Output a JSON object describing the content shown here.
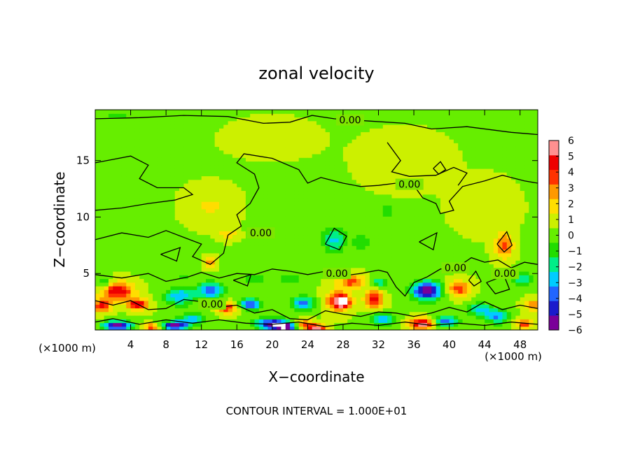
{
  "chart_data": {
    "type": "heatmap",
    "title": "zonal velocity",
    "xlabel": "X−coordinate",
    "ylabel": "Z−coordinate",
    "x_unit": "(×1000 m)",
    "x_unit_right": "(×1000 m)",
    "footer": "CONTOUR INTERVAL = 1.000E+01",
    "xlim": [
      0,
      50
    ],
    "ylim": [
      0,
      19.5
    ],
    "x_ticks": [
      4,
      8,
      12,
      16,
      20,
      24,
      28,
      32,
      36,
      40,
      44,
      48
    ],
    "x_tick_labels": [
      "4",
      "8",
      "12",
      "16",
      "20",
      "24",
      "28",
      "32",
      "36",
      "40",
      "44",
      "48"
    ],
    "y_ticks": [
      5,
      10,
      15
    ],
    "y_tick_labels": [
      "5",
      "10",
      "15"
    ],
    "colorbar": {
      "min": -6,
      "max": 6,
      "ticks": [
        6,
        5,
        4,
        3,
        2,
        1,
        0,
        -1,
        -2,
        -3,
        -4,
        -5,
        -6
      ],
      "tick_labels": [
        "6",
        "5",
        "4",
        "3",
        "2",
        "1",
        "0",
        "−1",
        "−2",
        "−3",
        "−4",
        "−5",
        "−6"
      ],
      "colors": [
        "#7a0099",
        "#1a1acc",
        "#2266ff",
        "#00ccff",
        "#00ee88",
        "#22dd00",
        "#66ee00",
        "#ccf000",
        "#ffdd00",
        "#ff9900",
        "#ff3300",
        "#ee0000",
        "#ff9090"
      ]
    },
    "contour_labels": [
      {
        "text": "0.00",
        "x": 28.8,
        "z": 18.6
      },
      {
        "text": "0.00",
        "x": 35.5,
        "z": 12.9
      },
      {
        "text": "0.00",
        "x": 18.7,
        "z": 8.6
      },
      {
        "text": "0.00",
        "x": 27.3,
        "z": 5.0
      },
      {
        "text": "0.00",
        "x": 40.7,
        "z": 5.5
      },
      {
        "text": "0.00",
        "x": 46.3,
        "z": 5.0
      },
      {
        "text": "0.00",
        "x": 13.2,
        "z": 2.3
      }
    ],
    "field": {
      "background": 0.4,
      "features": [
        {
          "x": 2.5,
          "z": 3.5,
          "sx": 1.8,
          "sz": 0.8,
          "v": 4.8
        },
        {
          "x": 0.8,
          "z": 2.2,
          "sx": 1.0,
          "sz": 0.6,
          "v": 4.2
        },
        {
          "x": 4.8,
          "z": 2.3,
          "sx": 1.2,
          "sz": 0.5,
          "v": 4.6
        },
        {
          "x": 2.5,
          "z": 0.4,
          "sx": 1.6,
          "sz": 0.4,
          "v": -6.5
        },
        {
          "x": 9.0,
          "z": 0.4,
          "sx": 1.5,
          "sz": 0.4,
          "v": -6.3
        },
        {
          "x": 6.5,
          "z": 0.3,
          "sx": 1.0,
          "sz": 0.3,
          "v": 4.0
        },
        {
          "x": 9.5,
          "z": 3.0,
          "sx": 1.6,
          "sz": 0.8,
          "v": -3.6
        },
        {
          "x": 13.0,
          "z": 3.5,
          "sx": 1.5,
          "sz": 0.7,
          "v": -4.5
        },
        {
          "x": 15.0,
          "z": 2.0,
          "sx": 1.2,
          "sz": 0.5,
          "v": 3.6
        },
        {
          "x": 11.0,
          "z": 1.0,
          "sx": 1.5,
          "sz": 0.5,
          "v": -3.0
        },
        {
          "x": 17.5,
          "z": 2.3,
          "sx": 1.3,
          "sz": 0.5,
          "v": -4.6
        },
        {
          "x": 20.0,
          "z": 0.6,
          "sx": 2.0,
          "sz": 0.5,
          "v": -5.4
        },
        {
          "x": 21.5,
          "z": 0.3,
          "sx": 1.5,
          "sz": 0.3,
          "v": -6.4
        },
        {
          "x": 23.5,
          "z": 0.5,
          "sx": 1.2,
          "sz": 0.4,
          "v": 4.0
        },
        {
          "x": 25.0,
          "z": 0.2,
          "sx": 1.0,
          "sz": 0.3,
          "v": 5.3
        },
        {
          "x": 23.5,
          "z": 2.4,
          "sx": 1.3,
          "sz": 0.6,
          "v": -3.8
        },
        {
          "x": 27.5,
          "z": 2.6,
          "sx": 1.4,
          "sz": 0.9,
          "v": 4.6
        },
        {
          "x": 28.0,
          "z": 2.5,
          "sx": 0.6,
          "sz": 0.4,
          "v": 5.6
        },
        {
          "x": 29.0,
          "z": 4.3,
          "sx": 1.6,
          "sz": 0.6,
          "v": 3.3
        },
        {
          "x": 31.5,
          "z": 2.8,
          "sx": 1.0,
          "sz": 0.8,
          "v": 4.4
        },
        {
          "x": 32.5,
          "z": 1.0,
          "sx": 1.5,
          "sz": 0.5,
          "v": -3.4
        },
        {
          "x": 32.0,
          "z": 4.2,
          "sx": 1.0,
          "sz": 0.5,
          "v": -2.5
        },
        {
          "x": 37.5,
          "z": 3.5,
          "sx": 1.7,
          "sz": 0.8,
          "v": -6.4
        },
        {
          "x": 37.0,
          "z": 0.6,
          "sx": 1.5,
          "sz": 0.5,
          "v": 5.6
        },
        {
          "x": 39.5,
          "z": 0.8,
          "sx": 1.4,
          "sz": 0.5,
          "v": -4.4
        },
        {
          "x": 41.0,
          "z": 3.7,
          "sx": 1.3,
          "sz": 0.7,
          "v": 3.6
        },
        {
          "x": 43.5,
          "z": 1.8,
          "sx": 1.3,
          "sz": 0.6,
          "v": -3.3
        },
        {
          "x": 45.5,
          "z": 1.2,
          "sx": 1.2,
          "sz": 0.6,
          "v": -3.7
        },
        {
          "x": 46.2,
          "z": 7.5,
          "sx": 1.0,
          "sz": 1.1,
          "v": 3.3
        },
        {
          "x": 48.5,
          "z": 0.6,
          "sx": 1.0,
          "sz": 0.4,
          "v": 3.6
        },
        {
          "x": 49.5,
          "z": 2.2,
          "sx": 1.0,
          "sz": 0.5,
          "v": 3.1
        },
        {
          "x": 48.2,
          "z": 4.5,
          "sx": 1.1,
          "sz": 0.6,
          "v": -2.8
        },
        {
          "x": 27.0,
          "z": 8.0,
          "sx": 1.3,
          "sz": 1.1,
          "v": -3.0
        },
        {
          "x": 30.0,
          "z": 7.8,
          "sx": 1.0,
          "sz": 0.8,
          "v": -1.6
        },
        {
          "x": 33.0,
          "z": 10.5,
          "sx": 0.8,
          "sz": 0.6,
          "v": -1.6
        },
        {
          "x": 13.0,
          "z": 6.0,
          "sx": 0.6,
          "sz": 0.5,
          "v": 3.0
        },
        {
          "x": 15.0,
          "z": 8.5,
          "sx": 1.0,
          "sz": 0.5,
          "v": 1.8
        },
        {
          "x": 18.0,
          "z": 4.5,
          "sx": 1.5,
          "sz": 0.5,
          "v": -1.4
        },
        {
          "x": 10.0,
          "z": 4.8,
          "sx": 1.2,
          "sz": 0.4,
          "v": -1.2
        },
        {
          "x": 22.0,
          "z": 4.5,
          "sx": 1.2,
          "sz": 0.5,
          "v": -1.6
        },
        {
          "x": 1.0,
          "z": 4.2,
          "sx": 1.0,
          "sz": 0.5,
          "v": -2.2
        },
        {
          "x": 2.5,
          "z": 19.0,
          "sx": 1.2,
          "sz": 0.4,
          "v": -1.3
        },
        {
          "x": 13.0,
          "z": 11.0,
          "sx": 2.5,
          "sz": 1.5,
          "v": 1.1
        },
        {
          "x": 35.0,
          "z": 15.0,
          "sx": 4.0,
          "sz": 2.0,
          "v": 0.9
        },
        {
          "x": 20.0,
          "z": 17.0,
          "sx": 6.0,
          "sz": 2.0,
          "v": 0.2
        },
        {
          "x": 44.0,
          "z": 11.0,
          "sx": 3.0,
          "sz": 2.0,
          "v": 0.8
        }
      ]
    },
    "zero_contours": [
      [
        [
          0,
          18.7
        ],
        [
          5,
          18.8
        ],
        [
          10,
          19.0
        ],
        [
          15,
          18.9
        ],
        [
          19,
          18.3
        ],
        [
          22,
          18.4
        ],
        [
          24.5,
          19.0
        ],
        [
          27,
          18.7
        ],
        [
          31,
          18.5
        ],
        [
          35,
          18.3
        ],
        [
          38,
          17.8
        ],
        [
          42,
          18.0
        ],
        [
          47,
          17.5
        ],
        [
          50,
          17.3
        ]
      ],
      [
        [
          0,
          14.8
        ],
        [
          4,
          15.4
        ],
        [
          6,
          14.6
        ],
        [
          5,
          13.4
        ],
        [
          7,
          12.6
        ],
        [
          10,
          12.6
        ],
        [
          11,
          12.0
        ],
        [
          9,
          11.5
        ],
        [
          6,
          11.2
        ],
        [
          3,
          10.8
        ],
        [
          0,
          10.6
        ]
      ],
      [
        [
          0,
          8.0
        ],
        [
          3,
          8.6
        ],
        [
          6,
          8.2
        ],
        [
          8,
          8.8
        ],
        [
          10,
          8.2
        ],
        [
          12,
          7.6
        ],
        [
          11,
          6.5
        ],
        [
          13,
          5.8
        ],
        [
          14.5,
          6.8
        ],
        [
          15,
          8.4
        ],
        [
          16.5,
          9.2
        ],
        [
          16,
          10.2
        ],
        [
          17.5,
          11.2
        ],
        [
          18.5,
          12.6
        ],
        [
          18,
          13.8
        ],
        [
          16,
          14.8
        ],
        [
          16.8,
          15.6
        ],
        [
          20,
          15.2
        ],
        [
          23,
          14.2
        ],
        [
          24,
          13.0
        ],
        [
          25.5,
          13.5
        ],
        [
          28,
          13.0
        ],
        [
          30,
          12.7
        ],
        [
          32,
          12.8
        ],
        [
          34,
          13.0
        ],
        [
          36,
          12.8
        ],
        [
          37,
          11.7
        ],
        [
          38.5,
          11.2
        ],
        [
          39,
          10.3
        ],
        [
          40.5,
          10.6
        ],
        [
          40,
          11.4
        ],
        [
          41.5,
          12.7
        ],
        [
          44,
          13.2
        ],
        [
          46,
          13.7
        ],
        [
          48.5,
          13.2
        ],
        [
          50,
          13.0
        ]
      ],
      [
        [
          33,
          16.6
        ],
        [
          34.5,
          15.0
        ],
        [
          33.5,
          14.0
        ],
        [
          35.5,
          13.6
        ],
        [
          38.5,
          13.7
        ],
        [
          40.5,
          14.4
        ],
        [
          42,
          13.9
        ],
        [
          41,
          12.8
        ]
      ],
      [
        [
          0,
          4.9
        ],
        [
          3,
          4.6
        ],
        [
          6,
          5.0
        ],
        [
          8,
          4.3
        ],
        [
          10.5,
          4.7
        ],
        [
          12,
          5.1
        ],
        [
          14,
          4.6
        ],
        [
          16,
          5.0
        ],
        [
          18,
          4.9
        ],
        [
          20,
          5.4
        ],
        [
          22,
          5.2
        ],
        [
          24,
          4.9
        ],
        [
          26,
          5.2
        ],
        [
          28,
          4.8
        ],
        [
          30,
          5.0
        ],
        [
          32,
          5.3
        ],
        [
          33,
          5.1
        ],
        [
          34,
          3.8
        ],
        [
          35,
          3.0
        ],
        [
          36,
          4.2
        ],
        [
          37.5,
          4.7
        ],
        [
          39,
          5.4
        ],
        [
          41,
          5.6
        ],
        [
          42.5,
          6.4
        ],
        [
          44,
          6.0
        ],
        [
          45.5,
          6.2
        ],
        [
          47,
          5.5
        ],
        [
          48.5,
          6.0
        ],
        [
          50,
          5.8
        ]
      ],
      [
        [
          0,
          2.6
        ],
        [
          2,
          2.2
        ],
        [
          4,
          2.6
        ],
        [
          6,
          1.8
        ],
        [
          8,
          1.9
        ],
        [
          10,
          2.7
        ],
        [
          12,
          2.5
        ],
        [
          14,
          2.0
        ],
        [
          16,
          2.2
        ],
        [
          18,
          1.5
        ],
        [
          20,
          1.8
        ],
        [
          22,
          1.0
        ],
        [
          24,
          0.9
        ],
        [
          26,
          1.7
        ],
        [
          28,
          1.4
        ],
        [
          30,
          1.2
        ],
        [
          32,
          1.6
        ],
        [
          34,
          1.5
        ],
        [
          36,
          1.2
        ],
        [
          38,
          1.5
        ],
        [
          40,
          2.0
        ],
        [
          42,
          1.6
        ],
        [
          44,
          2.5
        ],
        [
          46,
          1.8
        ],
        [
          48,
          2.2
        ],
        [
          50,
          1.9
        ]
      ],
      [
        [
          0,
          0.7
        ],
        [
          2,
          1.0
        ],
        [
          5,
          0.5
        ],
        [
          8,
          0.9
        ],
        [
          11,
          0.6
        ],
        [
          14,
          0.9
        ],
        [
          17,
          0.6
        ],
        [
          20,
          0.5
        ],
        [
          23,
          0.7
        ],
        [
          26,
          0.3
        ],
        [
          29,
          0.6
        ],
        [
          32,
          0.4
        ],
        [
          35,
          0.7
        ],
        [
          38,
          0.4
        ],
        [
          41,
          0.6
        ],
        [
          44,
          0.4
        ],
        [
          47,
          0.7
        ],
        [
          50,
          0.5
        ]
      ],
      [
        [
          26,
          7.6
        ],
        [
          27,
          9.0
        ],
        [
          28.4,
          8.3
        ],
        [
          27.6,
          7.1
        ],
        [
          26,
          7.6
        ]
      ],
      [
        [
          15.6,
          4.4
        ],
        [
          17.6,
          4.9
        ],
        [
          17.2,
          3.9
        ],
        [
          15.6,
          4.4
        ]
      ],
      [
        [
          44.2,
          4.2
        ],
        [
          46.2,
          4.8
        ],
        [
          46.8,
          3.6
        ],
        [
          45.2,
          3.2
        ],
        [
          44.2,
          4.2
        ]
      ],
      [
        [
          45.4,
          7.6
        ],
        [
          46.5,
          8.7
        ],
        [
          47.1,
          7.5
        ],
        [
          46.2,
          6.9
        ],
        [
          45.4,
          7.6
        ]
      ],
      [
        [
          36.6,
          7.8
        ],
        [
          38.6,
          8.6
        ],
        [
          38.2,
          7.1
        ],
        [
          36.6,
          7.8
        ]
      ],
      [
        [
          7.4,
          6.7
        ],
        [
          9.6,
          7.3
        ],
        [
          9.2,
          6.1
        ],
        [
          7.4,
          6.7
        ]
      ],
      [
        [
          38.2,
          14.3
        ],
        [
          39,
          14.9
        ],
        [
          39.6,
          14.2
        ],
        [
          38.8,
          13.8
        ],
        [
          38.2,
          14.3
        ]
      ],
      [
        [
          42.2,
          4.4
        ],
        [
          43,
          5.2
        ],
        [
          43.6,
          4.3
        ],
        [
          42.8,
          3.9
        ],
        [
          42.2,
          4.4
        ]
      ]
    ]
  }
}
